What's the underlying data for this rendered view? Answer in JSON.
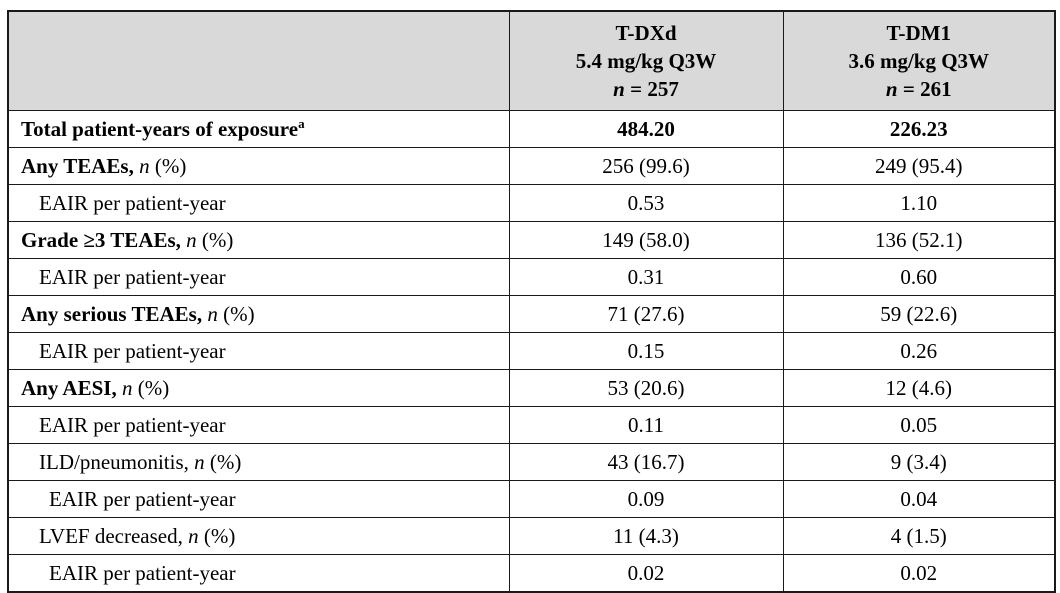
{
  "table": {
    "n_label": "n",
    "pct_label": "(%)",
    "colors": {
      "header_bg": "#d9d9d9",
      "border": "#1a1a1a",
      "text": "#000000"
    },
    "header": {
      "columns": [
        {
          "drug": "T-DXd",
          "dose": "5.4 mg/kg Q3W",
          "n_label": "n",
          "n_value": "= 257"
        },
        {
          "drug": "T-DM1",
          "dose": "3.6 mg/kg Q3W",
          "n_label": "n",
          "n_value": "= 261"
        }
      ]
    },
    "rows": [
      {
        "label": "Total patient-years of exposure",
        "sup": "a",
        "bold": true,
        "n_pct": false,
        "indent": 1,
        "values": [
          "484.20",
          "226.23"
        ],
        "values_bold": true
      },
      {
        "label": "Any TEAEs,",
        "sup": "",
        "bold": true,
        "n_pct": true,
        "indent": 1,
        "values": [
          "256 (99.6)",
          "249 (95.4)"
        ],
        "values_bold": false
      },
      {
        "label": "EAIR per patient-year",
        "sup": "",
        "bold": false,
        "n_pct": false,
        "indent": 2,
        "values": [
          "0.53",
          "1.10"
        ],
        "values_bold": false
      },
      {
        "label": "Grade ≥3 TEAEs,",
        "sup": "",
        "bold": true,
        "n_pct": true,
        "indent": 1,
        "values": [
          "149 (58.0)",
          "136 (52.1)"
        ],
        "values_bold": false
      },
      {
        "label": "EAIR per patient-year",
        "sup": "",
        "bold": false,
        "n_pct": false,
        "indent": 2,
        "values": [
          "0.31",
          "0.60"
        ],
        "values_bold": false
      },
      {
        "label": "Any serious TEAEs,",
        "sup": "",
        "bold": true,
        "n_pct": true,
        "indent": 1,
        "values": [
          "71 (27.6)",
          "59 (22.6)"
        ],
        "values_bold": false
      },
      {
        "label": "EAIR per patient-year",
        "sup": "",
        "bold": false,
        "n_pct": false,
        "indent": 2,
        "values": [
          "0.15",
          "0.26"
        ],
        "values_bold": false
      },
      {
        "label": "Any AESI,",
        "sup": "",
        "bold": true,
        "n_pct": true,
        "indent": 1,
        "values": [
          "53 (20.6)",
          "12 (4.6)"
        ],
        "values_bold": false
      },
      {
        "label": "EAIR per patient-year",
        "sup": "",
        "bold": false,
        "n_pct": false,
        "indent": 2,
        "values": [
          "0.11",
          "0.05"
        ],
        "values_bold": false
      },
      {
        "label": "ILD/pneumonitis,",
        "sup": "",
        "bold": false,
        "n_pct": true,
        "indent": 2,
        "values": [
          "43 (16.7)",
          "9 (3.4)"
        ],
        "values_bold": false
      },
      {
        "label": "EAIR per patient-year",
        "sup": "",
        "bold": false,
        "n_pct": false,
        "indent": 3,
        "values": [
          "0.09",
          "0.04"
        ],
        "values_bold": false
      },
      {
        "label": "LVEF decreased,",
        "sup": "",
        "bold": false,
        "n_pct": true,
        "indent": 2,
        "values": [
          "11 (4.3)",
          "4 (1.5)"
        ],
        "values_bold": false
      },
      {
        "label": "EAIR per patient-year",
        "sup": "",
        "bold": false,
        "n_pct": false,
        "indent": 3,
        "values": [
          "0.02",
          "0.02"
        ],
        "values_bold": false
      }
    ]
  }
}
